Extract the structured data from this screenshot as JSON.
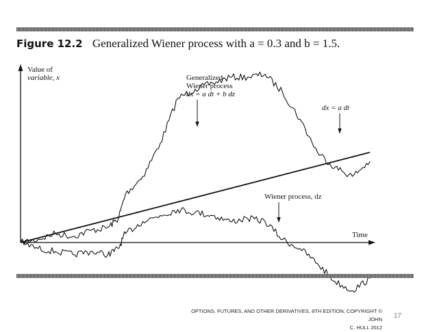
{
  "caption": {
    "figure_label": "Figure 12.2",
    "title": "Generalized Wiener process with a = 0.3 and b = 1.5."
  },
  "chart_data": {
    "type": "line",
    "title": "Generalized Wiener process with a = 0.3 and b = 1.5.",
    "xlabel": "Time",
    "ylabel": "Value of variable, x",
    "a": 0.3,
    "b": 1.5,
    "grid": false,
    "legend": "none",
    "annotations": [
      {
        "text": "Generalized Wiener process dx = a dt + b dz",
        "target": "generalized"
      },
      {
        "text": "dx = a dt",
        "target": "drift"
      },
      {
        "text": "Wiener process, dz",
        "target": "wiener"
      }
    ],
    "series": [
      {
        "name": "dx = a dt",
        "shape": "straight",
        "x": [
          0,
          1
        ],
        "y": [
          0,
          0.3
        ]
      },
      {
        "name": "Generalized Wiener process",
        "shape": "random-walk",
        "x": [
          0,
          0.05,
          0.1,
          0.15,
          0.2,
          0.25,
          0.28,
          0.3,
          0.35,
          0.4,
          0.45,
          0.5,
          0.55,
          0.6,
          0.65,
          0.7,
          0.75,
          0.8,
          0.85,
          0.9,
          0.95,
          1.0
        ],
        "y": [
          0,
          0.01,
          0.03,
          0.02,
          0.04,
          0.05,
          0.08,
          0.16,
          0.22,
          0.33,
          0.48,
          0.51,
          0.53,
          0.55,
          0.55,
          0.56,
          0.5,
          0.41,
          0.3,
          0.25,
          0.22,
          0.27
        ]
      },
      {
        "name": "Wiener process, dz",
        "shape": "random-walk",
        "x": [
          0,
          0.05,
          0.1,
          0.15,
          0.2,
          0.25,
          0.28,
          0.3,
          0.35,
          0.4,
          0.45,
          0.5,
          0.55,
          0.6,
          0.65,
          0.7,
          0.75,
          0.8,
          0.85,
          0.9,
          0.95,
          1.0
        ],
        "y": [
          0,
          -0.02,
          -0.03,
          -0.04,
          -0.03,
          -0.04,
          -0.02,
          0.03,
          0.07,
          0.09,
          0.11,
          0.1,
          0.09,
          0.07,
          0.08,
          0.07,
          0.01,
          -0.02,
          -0.07,
          -0.13,
          -0.16,
          -0.12
        ]
      }
    ]
  },
  "labels": {
    "y_line1": "Value of",
    "y_line2": "variable, x",
    "gen_line1": "Generalized",
    "gen_line2": "Wiener process",
    "gen_line3": "dx = a dt + b dz",
    "drift": "dx = a dt",
    "wiener": "Wiener process, dz",
    "time": "Time"
  },
  "footer": {
    "line1": "OPTIONS, FUTURES, AND OTHER DERIVATIVES, 8TH EDITION, COPYRIGHT © JOHN",
    "line2": "C. HULL 2012",
    "page": "17"
  }
}
